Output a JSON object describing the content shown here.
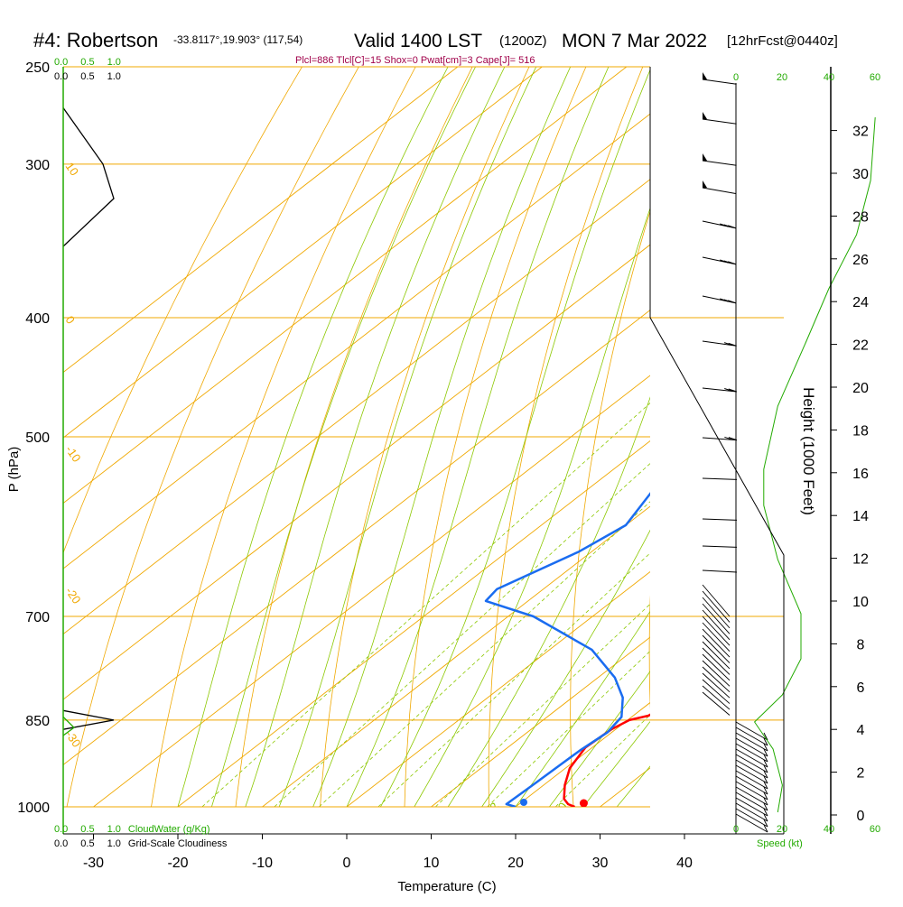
{
  "header": {
    "station": "#4: Robertson",
    "coords": "-33.8117°,19.903° (117,54)",
    "valid": "Valid 1400 LST",
    "utc": "(1200Z)",
    "date": "MON 7 Mar 2022",
    "forecast": "[12hrFcst@0440z]",
    "indices": "Plcl=886 Tlcl[C]=15 Shox=0 Pwat[cm]=3 Cape[J]= 516"
  },
  "colors": {
    "temperature": "#ff0000",
    "dewpoint": "#1a6cf0",
    "parcel": "#7a1050",
    "isotherm": "#f0a800",
    "dry_adiabat": "#f0a800",
    "moist_adiabat": "#8cc800",
    "mixing_ratio": "#8cc800",
    "green_label": "#22aa00",
    "black": "#000000"
  },
  "chart_data": {
    "type": "line",
    "subtype": "skew-t log-p sounding",
    "xlabel": "Temperature (C)",
    "ylabel": "P (hPa)",
    "x_ticks": [
      -30,
      -20,
      -10,
      0,
      10,
      20,
      30,
      40
    ],
    "y_ticks": [
      250,
      300,
      400,
      500,
      700,
      850,
      1000
    ],
    "xlim": [
      -33,
      46
    ],
    "ylim": [
      1000,
      250
    ],
    "isotherm_labels": [
      "10",
      "0",
      "-10",
      "-20",
      "-30",
      "0",
      "10",
      "20",
      "30"
    ],
    "mixing_ratio_labels": [
      "1",
      "2",
      "3",
      "5",
      "8",
      "12",
      "20"
    ],
    "series": [
      {
        "name": "Temperature",
        "points": [
          [
            27.0,
            1000
          ],
          [
            25.8,
            995
          ],
          [
            24.5,
            985
          ],
          [
            22.5,
            960
          ],
          [
            20.5,
            930
          ],
          [
            19.2,
            895
          ],
          [
            19.5,
            865
          ],
          [
            20.2,
            850
          ],
          [
            21.8,
            843
          ],
          [
            22.4,
            825
          ],
          [
            22.2,
            795
          ],
          [
            21.4,
            770
          ],
          [
            20.2,
            730
          ],
          [
            18.0,
            670
          ],
          [
            15.5,
            600
          ],
          [
            12.0,
            535
          ],
          [
            8.0,
            475
          ],
          [
            4.0,
            425
          ],
          [
            0.0,
            380
          ],
          [
            -4.0,
            340
          ],
          [
            -8.0,
            310
          ],
          [
            -12.0,
            285
          ],
          [
            -15.0,
            265
          ]
        ]
      },
      {
        "name": "Dewpoint",
        "points": [
          [
            20.0,
            1000
          ],
          [
            18.5,
            995
          ],
          [
            18.7,
            960
          ],
          [
            19.0,
            900
          ],
          [
            19.5,
            870
          ],
          [
            18.8,
            845
          ],
          [
            16.0,
            815
          ],
          [
            12.0,
            785
          ],
          [
            5.0,
            745
          ],
          [
            -7.0,
            700
          ],
          [
            -15.0,
            680
          ],
          [
            -15.5,
            665
          ],
          [
            -11.5,
            620
          ],
          [
            -10.0,
            590
          ],
          [
            -12.0,
            555
          ],
          [
            -15.0,
            520
          ],
          [
            -21.0,
            465
          ],
          [
            -23.0,
            430
          ],
          [
            -17.0,
            400
          ],
          [
            -8.0,
            375
          ],
          [
            -3.0,
            350
          ],
          [
            -5.0,
            320
          ],
          [
            -12.0,
            290
          ],
          [
            -22.0,
            265
          ]
        ]
      },
      {
        "name": "Parcel",
        "points": [
          [
            15.5,
            600
          ],
          [
            13.0,
            540
          ],
          [
            9.0,
            475
          ],
          [
            5.0,
            425
          ],
          [
            1.0,
            380
          ],
          [
            -3.0,
            340
          ],
          [
            -7.0,
            310
          ],
          [
            -11.5,
            285
          ],
          [
            -14.5,
            265
          ]
        ]
      }
    ],
    "cloud": {
      "axis_labels": [
        "0.0",
        "0.5",
        "1.0"
      ],
      "cloud_water_label": "CloudWater (g/Kg)",
      "cloudiness_label": "Grid-Scale Cloudiness",
      "cloudiness_profile": [
        [
          0.0,
          270
        ],
        [
          0.55,
          300
        ],
        [
          0.7,
          320
        ],
        [
          0.0,
          350
        ]
      ],
      "cloudwater_profile": [
        [
          0.0,
          845
        ],
        [
          0.15,
          862
        ],
        [
          0.0,
          875
        ]
      ],
      "low_cloudiness_profile": [
        [
          0.0,
          835
        ],
        [
          0.7,
          850
        ],
        [
          0.0,
          865
        ]
      ]
    },
    "wind": {
      "speed_label": "Speed (kt)",
      "speed_ticks": [
        "0",
        "20",
        "40",
        "60"
      ]
    },
    "height": {
      "label": "Height (1000 Feet)",
      "ticks": [
        0,
        2,
        4,
        6,
        8,
        10,
        12,
        14,
        16,
        18,
        20,
        22,
        24,
        26,
        28,
        30,
        32
      ]
    }
  }
}
